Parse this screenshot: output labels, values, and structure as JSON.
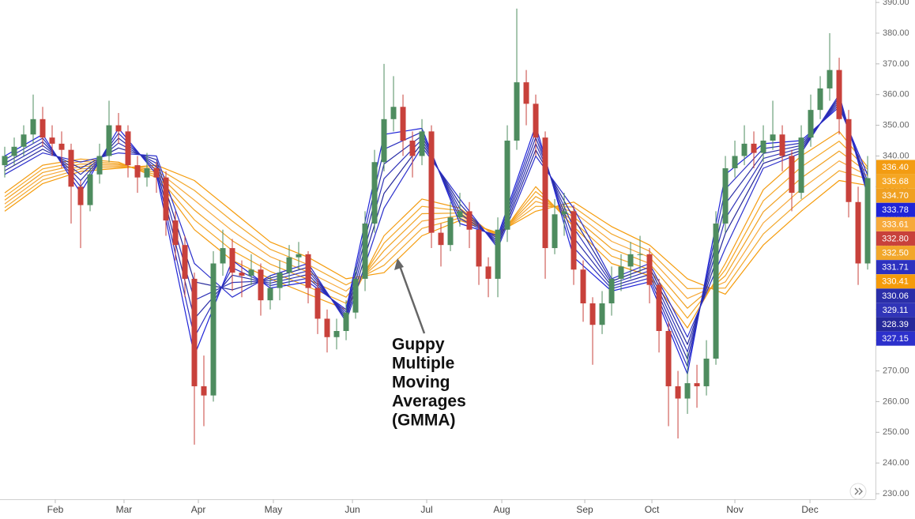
{
  "chart_data": {
    "type": "candlestick",
    "annotation": [
      "Guppy",
      "Multiple",
      "Moving",
      "Averages",
      "(GMMA)"
    ],
    "xlim": [
      0,
      92.33
    ],
    "xticks": [
      {
        "value": 5.83,
        "label": "Feb"
      },
      {
        "value": 13.08,
        "label": "Mar"
      },
      {
        "value": 20.92,
        "label": "Apr"
      },
      {
        "value": 28.83,
        "label": "May"
      },
      {
        "value": 37.17,
        "label": "Jun"
      },
      {
        "value": 45,
        "label": "Jul"
      },
      {
        "value": 52.92,
        "label": "Aug"
      },
      {
        "value": 61.67,
        "label": "Sep"
      },
      {
        "value": 68.75,
        "label": "Oct"
      },
      {
        "value": 77.5,
        "label": "Nov"
      },
      {
        "value": 85.42,
        "label": "Dec"
      }
    ],
    "ylim": [
      228.2,
      390.8
    ],
    "yticks": [
      {
        "value": 230,
        "label": "230.00"
      },
      {
        "value": 240,
        "label": "240.00"
      },
      {
        "value": 250,
        "label": "250.00"
      },
      {
        "value": 260,
        "label": "260.00"
      },
      {
        "value": 270,
        "label": "270.00"
      },
      {
        "value": 280,
        "label": "280.00"
      },
      {
        "value": 290,
        "label": "290.00"
      },
      {
        "value": 300,
        "label": "300.00"
      },
      {
        "value": 310,
        "label": "310.00"
      },
      {
        "value": 320,
        "label": "320.00"
      },
      {
        "value": 330,
        "label": "330.00"
      },
      {
        "value": 340,
        "label": "340.00"
      },
      {
        "value": 350,
        "label": "350.00"
      },
      {
        "value": 360,
        "label": "360.00"
      },
      {
        "value": 370,
        "label": "370.00"
      },
      {
        "value": 380,
        "label": "380.00"
      },
      {
        "value": 390,
        "label": "390.00"
      }
    ],
    "candles": {
      "up_color": "#4e8c5f",
      "down_color": "#c8413b",
      "close_label": "332.80",
      "open": [
        337,
        340,
        343,
        347,
        352,
        346,
        344,
        342,
        330,
        324,
        334,
        340,
        350,
        348,
        337,
        333,
        336,
        333,
        319,
        311,
        300,
        265,
        262,
        305,
        310,
        302,
        301,
        303,
        293,
        297,
        302,
        307,
        308,
        297,
        287,
        281,
        283,
        289,
        300,
        318,
        338,
        352,
        356,
        345,
        340,
        348,
        315,
        311,
        320,
        322,
        316,
        304,
        300,
        316,
        345,
        364,
        357,
        346,
        310,
        321,
        322,
        303,
        292,
        285,
        292,
        300,
        304,
        308,
        308,
        298,
        283,
        265,
        261,
        266,
        265,
        274,
        318,
        336,
        340,
        344,
        341,
        345,
        347,
        340,
        328,
        346,
        355,
        362,
        368,
        352,
        325,
        305
      ],
      "high": [
        343,
        346,
        350,
        360,
        356,
        350,
        348,
        344,
        332,
        337,
        344,
        358,
        354,
        350,
        340,
        341,
        338,
        335,
        322,
        314,
        302,
        275,
        309,
        316,
        313,
        306,
        308,
        305,
        301,
        306,
        311,
        312,
        309,
        300,
        290,
        287,
        293,
        304,
        322,
        342,
        370,
        366,
        360,
        348,
        352,
        350,
        318,
        325,
        328,
        325,
        318,
        307,
        320,
        350,
        388,
        368,
        360,
        348,
        326,
        328,
        324,
        306,
        294,
        296,
        304,
        308,
        312,
        314,
        310,
        300,
        286,
        270,
        276,
        272,
        280,
        322,
        340,
        345,
        350,
        348,
        350,
        358,
        350,
        342,
        350,
        360,
        366,
        380,
        372,
        355,
        330,
        340
      ],
      "low": [
        333,
        337,
        340,
        344,
        343,
        340,
        336,
        318,
        310,
        322,
        331,
        338,
        344,
        333,
        328,
        330,
        328,
        314,
        306,
        294,
        246,
        252,
        260,
        301,
        296,
        294,
        298,
        288,
        290,
        293,
        298,
        303,
        292,
        282,
        276,
        277,
        280,
        287,
        296,
        315,
        335,
        348,
        340,
        333,
        337,
        310,
        304,
        309,
        317,
        310,
        298,
        294,
        294,
        312,
        342,
        350,
        340,
        300,
        308,
        314,
        298,
        286,
        272,
        282,
        288,
        296,
        300,
        302,
        292,
        276,
        252,
        248,
        256,
        258,
        262,
        272,
        315,
        333,
        337,
        336,
        338,
        342,
        335,
        322,
        326,
        343,
        352,
        358,
        347,
        320,
        298,
        303
      ],
      "close": [
        340,
        343,
        347,
        352,
        346,
        344,
        342,
        330,
        324,
        334,
        340,
        350,
        348,
        337,
        333,
        336,
        333,
        319,
        311,
        300,
        265,
        262,
        305,
        310,
        302,
        301,
        303,
        293,
        297,
        302,
        307,
        308,
        297,
        287,
        281,
        283,
        289,
        300,
        318,
        338,
        352,
        356,
        345,
        340,
        348,
        315,
        311,
        320,
        322,
        316,
        304,
        300,
        316,
        345,
        364,
        357,
        346,
        310,
        321,
        322,
        303,
        292,
        285,
        292,
        300,
        304,
        308,
        308,
        298,
        283,
        265,
        261,
        266,
        265,
        274,
        318,
        336,
        340,
        344,
        341,
        345,
        347,
        340,
        328,
        346,
        355,
        362,
        368,
        352,
        325,
        305,
        332.8
      ]
    },
    "moving_averages": [
      {
        "color": "#f39c12",
        "last_label": "336.40",
        "x": [
          0.5,
          4.5,
          8.5,
          12.5,
          16.5,
          20.5,
          24.5,
          28.5,
          32.5,
          36.5,
          40.5,
          44.5,
          48.5,
          52.5,
          56.5,
          60.5,
          64.5,
          68.5,
          72.5,
          76.5,
          80.5,
          84.5,
          88.5,
          91.5
        ],
        "values": [
          328,
          337,
          339,
          338,
          333,
          316,
          306,
          300,
          295,
          290,
          314,
          326,
          323,
          313,
          330,
          317,
          305,
          301,
          284,
          305,
          329,
          340,
          348,
          336.4
        ]
      },
      {
        "color": "#f5a623",
        "last_label": "335.68",
        "x": [
          0.5,
          4.5,
          8.5,
          12.5,
          16.5,
          20.5,
          24.5,
          28.5,
          32.5,
          36.5,
          40.5,
          44.5,
          48.5,
          52.5,
          56.5,
          60.5,
          64.5,
          68.5,
          72.5,
          76.5,
          80.5,
          84.5,
          88.5,
          91.5
        ],
        "values": [
          326.8,
          335.8,
          338.2,
          337.6,
          333.8,
          319.2,
          309.2,
          302.4,
          297.4,
          292,
          311.6,
          323.6,
          322.2,
          313.4,
          328.4,
          318.6,
          307.4,
          303,
          287.2,
          303,
          325.4,
          336.4,
          344.8,
          335.68
        ]
      },
      {
        "color": "#f0a020",
        "last_label": "334.70",
        "x": [
          0.5,
          4.5,
          8.5,
          12.5,
          16.5,
          20.5,
          24.5,
          28.5,
          32.5,
          36.5,
          40.5,
          44.5,
          48.5,
          52.5,
          56.5,
          60.5,
          64.5,
          68.5,
          72.5,
          76.5,
          80.5,
          84.5,
          88.5,
          91.5
        ],
        "values": [
          325.6,
          334.6,
          337.4,
          337.2,
          334.6,
          322.4,
          312.4,
          304.8,
          299.8,
          294,
          309.2,
          321.2,
          321.4,
          313.8,
          326.8,
          320.2,
          309.8,
          305,
          290.4,
          301,
          321.8,
          332.8,
          341.6,
          334.7
        ]
      },
      {
        "color": "#f7a93a",
        "last_label": "333.61",
        "x": [
          0.5,
          4.5,
          8.5,
          12.5,
          16.5,
          20.5,
          24.5,
          28.5,
          32.5,
          36.5,
          40.5,
          44.5,
          48.5,
          52.5,
          56.5,
          60.5,
          64.5,
          68.5,
          72.5,
          76.5,
          80.5,
          84.5,
          88.5,
          91.5
        ],
        "values": [
          324.4,
          333.4,
          336.6,
          336.8,
          335.4,
          325.6,
          315.6,
          307.2,
          302.2,
          296,
          306.8,
          318.8,
          320.6,
          314.2,
          325.2,
          321.8,
          312.2,
          307,
          293.6,
          299,
          318.2,
          329.2,
          338.4,
          333.61
        ]
      },
      {
        "color": "#f2a72b",
        "last_label": "332.50",
        "x": [
          0.5,
          4.5,
          8.5,
          12.5,
          16.5,
          20.5,
          24.5,
          28.5,
          32.5,
          36.5,
          40.5,
          44.5,
          48.5,
          52.5,
          56.5,
          60.5,
          64.5,
          68.5,
          72.5,
          76.5,
          80.5,
          84.5,
          88.5,
          91.5
        ],
        "values": [
          323.2,
          332.2,
          335.8,
          336.4,
          336.2,
          328.8,
          318.8,
          309.6,
          304.6,
          298,
          304.4,
          316.4,
          319.8,
          314.6,
          323.6,
          323.4,
          314.6,
          309,
          296.8,
          297,
          314.6,
          325.6,
          335.2,
          332.5
        ]
      },
      {
        "color": "#f59b0a",
        "last_label": "330.41",
        "x": [
          0.5,
          4.5,
          8.5,
          12.5,
          16.5,
          20.5,
          24.5,
          28.5,
          32.5,
          36.5,
          40.5,
          44.5,
          48.5,
          52.5,
          56.5,
          60.5,
          64.5,
          68.5,
          72.5,
          76.5,
          80.5,
          84.5,
          88.5,
          91.5
        ],
        "values": [
          322,
          331,
          335,
          336,
          337,
          332,
          322,
          312,
          307,
          300,
          302,
          314,
          319,
          315,
          322,
          325,
          317,
          311,
          300,
          295,
          311,
          322,
          332,
          330.41
        ]
      },
      {
        "color": "#1f24d8",
        "last_label": "333.78",
        "x": [
          0.5,
          4.5,
          8.5,
          12.5,
          16.5,
          20.5,
          24.5,
          28.5,
          32.5,
          36.5,
          40.5,
          44.5,
          48.5,
          52.5,
          56.5,
          60.5,
          64.5,
          68.5,
          72.5,
          76.5,
          80.5,
          84.5,
          88.5,
          91.5
        ],
        "values": [
          340,
          347,
          328,
          349,
          334,
          275,
          306,
          297,
          299,
          290,
          347,
          349,
          318,
          314,
          350,
          307,
          296,
          299,
          269,
          334,
          344,
          345,
          356,
          333.78
        ]
      },
      {
        "color": "#2d31c0",
        "last_label": "331.71",
        "x": [
          0.5,
          4.5,
          8.5,
          12.5,
          16.5,
          20.5,
          24.5,
          28.5,
          32.5,
          36.5,
          40.5,
          44.5,
          48.5,
          52.5,
          56.5,
          60.5,
          64.5,
          68.5,
          72.5,
          76.5,
          80.5,
          84.5,
          88.5,
          91.5
        ],
        "values": [
          338.8,
          345.8,
          330,
          347.4,
          335.2,
          281,
          303.6,
          297.8,
          300.2,
          289.2,
          342.2,
          347.8,
          319.6,
          313.2,
          348,
          310.2,
          296.8,
          300.2,
          271.4,
          329.2,
          342.4,
          344.2,
          356.8,
          331.71
        ]
      },
      {
        "color": "#2a2ea8",
        "last_label": "330.06",
        "x": [
          0.5,
          4.5,
          8.5,
          12.5,
          16.5,
          20.5,
          24.5,
          28.5,
          32.5,
          36.5,
          40.5,
          44.5,
          48.5,
          52.5,
          56.5,
          60.5,
          64.5,
          68.5,
          72.5,
          76.5,
          80.5,
          84.5,
          88.5,
          91.5
        ],
        "values": [
          337.6,
          344.6,
          332,
          345.8,
          336.4,
          287,
          301.2,
          298.6,
          301.4,
          288.4,
          337.4,
          346.6,
          321.2,
          312.4,
          346,
          313.4,
          297.6,
          301.4,
          273.8,
          324.4,
          340.8,
          343.4,
          357.6,
          330.06
        ]
      },
      {
        "color": "#3034b8",
        "last_label": "329.11",
        "x": [
          0.5,
          4.5,
          8.5,
          12.5,
          16.5,
          20.5,
          24.5,
          28.5,
          32.5,
          36.5,
          40.5,
          44.5,
          48.5,
          52.5,
          56.5,
          60.5,
          64.5,
          68.5,
          72.5,
          76.5,
          80.5,
          84.5,
          88.5,
          91.5
        ],
        "values": [
          336.4,
          343.4,
          334,
          344.2,
          337.6,
          293,
          298.8,
          299.4,
          302.6,
          287.6,
          332.6,
          345.4,
          322.8,
          311.6,
          344,
          316.6,
          298.4,
          302.6,
          276.2,
          319.6,
          339.2,
          342.6,
          358.4,
          329.11
        ]
      },
      {
        "color": "#25289a",
        "last_label": "328.39",
        "x": [
          0.5,
          4.5,
          8.5,
          12.5,
          16.5,
          20.5,
          24.5,
          28.5,
          32.5,
          36.5,
          40.5,
          44.5,
          48.5,
          52.5,
          56.5,
          60.5,
          64.5,
          68.5,
          72.5,
          76.5,
          80.5,
          84.5,
          88.5,
          91.5
        ],
        "values": [
          335.2,
          342.2,
          336,
          342.6,
          338.8,
          299,
          296.4,
          300.2,
          303.8,
          286.8,
          327.8,
          344.2,
          324.4,
          310.8,
          342,
          319.8,
          299.2,
          303.8,
          278.6,
          314.8,
          337.6,
          341.8,
          359.2,
          328.39
        ]
      },
      {
        "color": "#2c30cc",
        "last_label": "327.15",
        "x": [
          0.5,
          4.5,
          8.5,
          12.5,
          16.5,
          20.5,
          24.5,
          28.5,
          32.5,
          36.5,
          40.5,
          44.5,
          48.5,
          52.5,
          56.5,
          60.5,
          64.5,
          68.5,
          72.5,
          76.5,
          80.5,
          84.5,
          88.5,
          91.5
        ],
        "values": [
          334,
          341,
          338,
          341,
          340,
          305,
          294,
          301,
          305,
          286,
          323,
          343,
          326,
          310,
          340,
          323,
          300,
          305,
          281,
          310,
          336,
          341,
          360,
          327.15
        ]
      }
    ]
  }
}
